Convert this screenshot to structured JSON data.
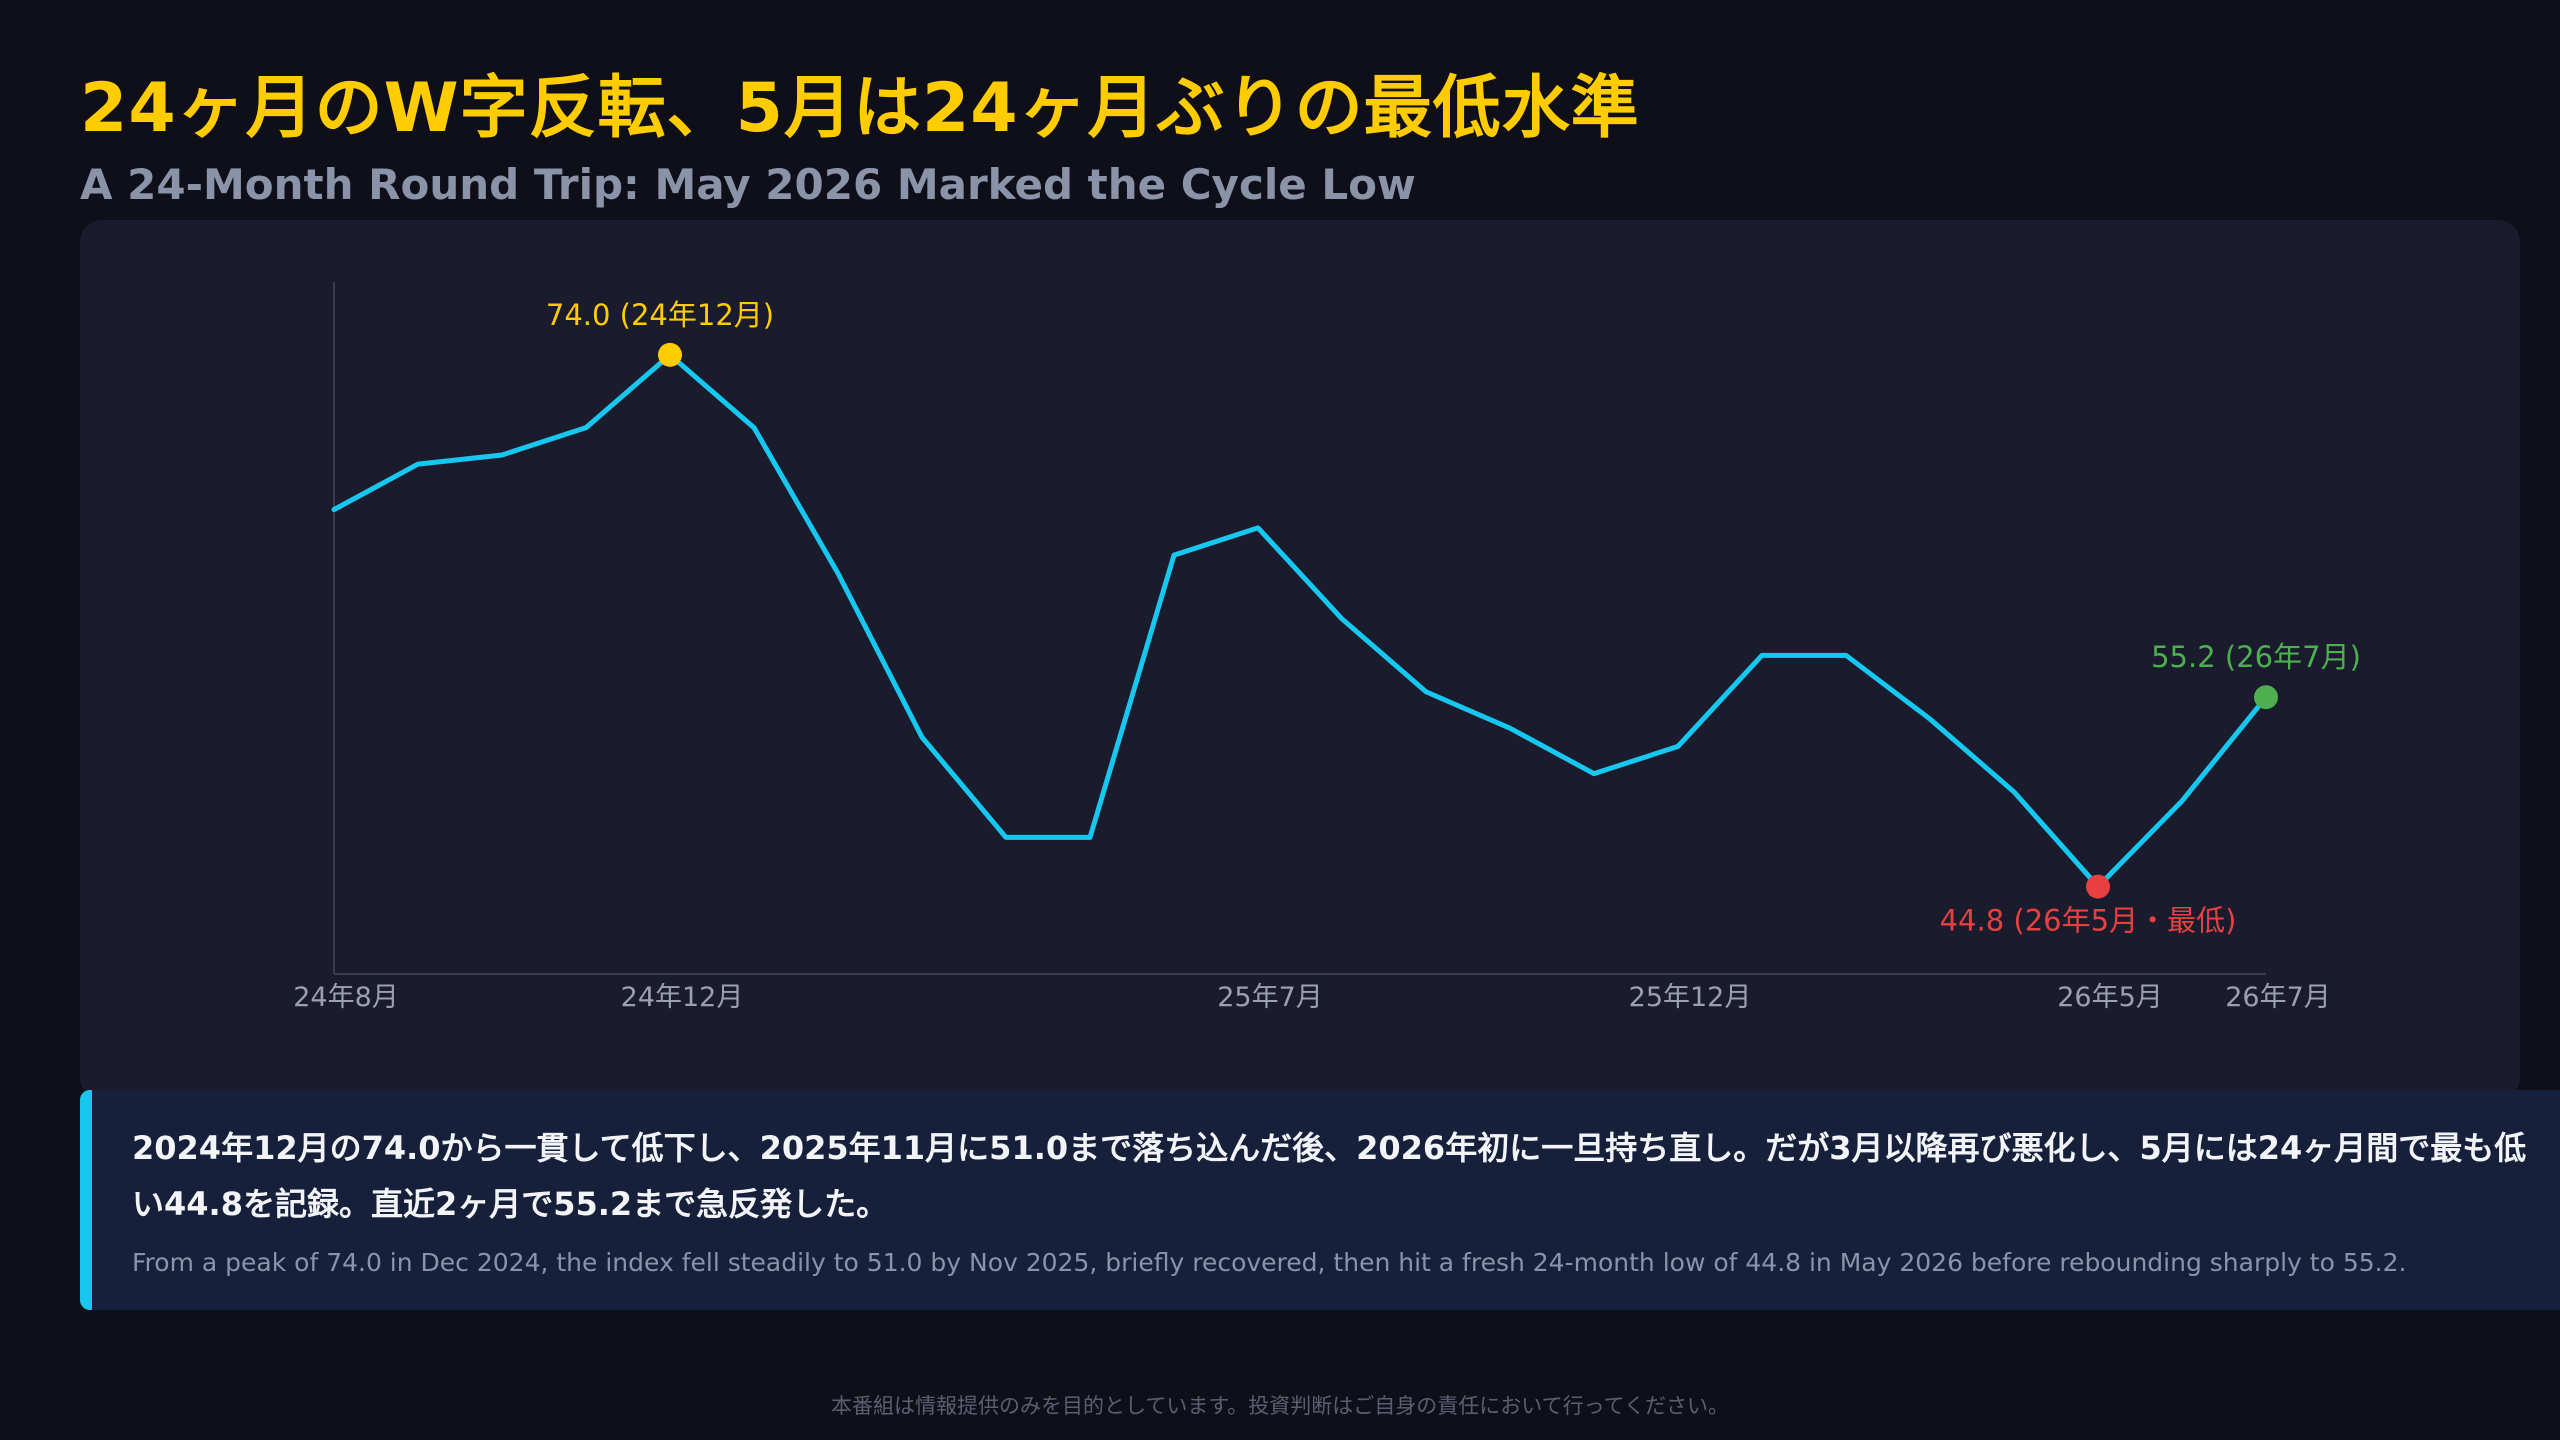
{
  "header": {
    "title": "24ヶ月のW字反転、5月は24ヶ月ぶりの最低水準",
    "subtitle": "A 24-Month Round Trip: May 2026 Marked the Cycle Low"
  },
  "chart_data": {
    "type": "line",
    "title": "",
    "xlabel": "",
    "ylabel": "",
    "grid": false,
    "x": [
      "24年8月",
      "24年9月",
      "24年10月",
      "24年11月",
      "24年12月",
      "25年1月",
      "25年2月",
      "25年3月",
      "25年4月",
      "25年5月",
      "25年6月",
      "25年7月",
      "25年8月",
      "25年9月",
      "25年10月",
      "25年11月",
      "25年12月",
      "26年1月",
      "26年2月",
      "26年3月",
      "26年4月",
      "26年5月",
      "26年6月",
      "26年7月"
    ],
    "tick_labels": [
      {
        "index": 0,
        "label": "24年8月"
      },
      {
        "index": 4,
        "label": "24年12月"
      },
      {
        "index": 11,
        "label": "25年7月"
      },
      {
        "index": 16,
        "label": "25年12月"
      },
      {
        "index": 21,
        "label": "26年5月"
      },
      {
        "index": 23,
        "label": "26年7月"
      }
    ],
    "series": [
      {
        "values": [
          65.5,
          68.0,
          68.5,
          70.0,
          74.0,
          70.0,
          62.0,
          53.0,
          47.5,
          47.5,
          63.0,
          64.5,
          59.5,
          55.5,
          53.5,
          51.0,
          52.5,
          57.5,
          57.5,
          54.0,
          50.0,
          44.8,
          49.5,
          55.2
        ],
        "color": "#16C8F0"
      }
    ],
    "ylim": [
      40,
      78
    ],
    "annotations": [
      {
        "index": 4,
        "label": "74.0 (24年12月)",
        "color": "#FFCC00",
        "position": "above"
      },
      {
        "index": 21,
        "label": "44.8 (26年5月・最低)",
        "color": "#E84040",
        "position": "below"
      },
      {
        "index": 23,
        "label": "55.2 (26年7月)",
        "color": "#4CAF50",
        "position": "above"
      }
    ]
  },
  "summary": {
    "ja": "2024年12月の74.0から一貫して低下し、2025年11月に51.0まで落ち込んだ後、2026年初に一旦持ち直し。だが3月以降再び悪化し、5月には24ヶ月間で最も低い44.8を記録。直近2ヶ月で55.2まで急反発した。",
    "en": "From a peak of 74.0 in Dec 2024, the index fell steadily to 51.0 by Nov 2025, briefly recovered, then hit a fresh 24-month low of 44.8 in May 2026 before rebounding sharply to 55.2."
  },
  "footer": {
    "disclaimer": "本番組は情報提供のみを目的としています。投資判断はご自身の責任において行ってください。"
  }
}
